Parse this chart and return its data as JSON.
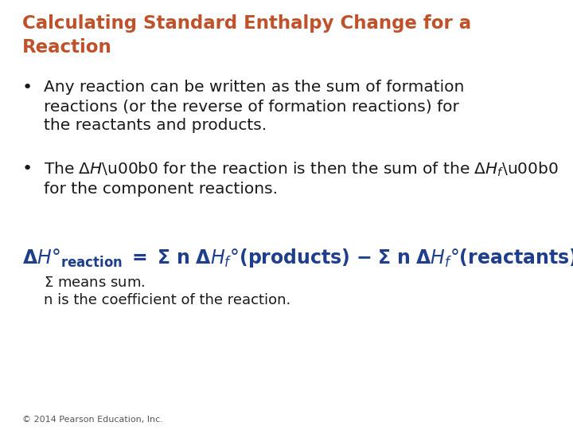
{
  "title_line1": "Calculating Standard Enthalpy Change for a",
  "title_line2": "Reaction",
  "title_color": "#C0522B",
  "background_color": "#FFFFFF",
  "bullet1_line1": "Any reaction can be written as the sum of formation",
  "bullet1_line2": "reactions (or the reverse of formation reactions) for",
  "bullet1_line3": "the reactants and products.",
  "bullet2_line2": "for the component reactions.",
  "formula_color": "#1F3E8C",
  "text_color": "#1a1a1a",
  "copyright": "© 2014 Pearson Education, Inc.",
  "figsize": [
    7.2,
    5.4
  ],
  "dpi": 100
}
